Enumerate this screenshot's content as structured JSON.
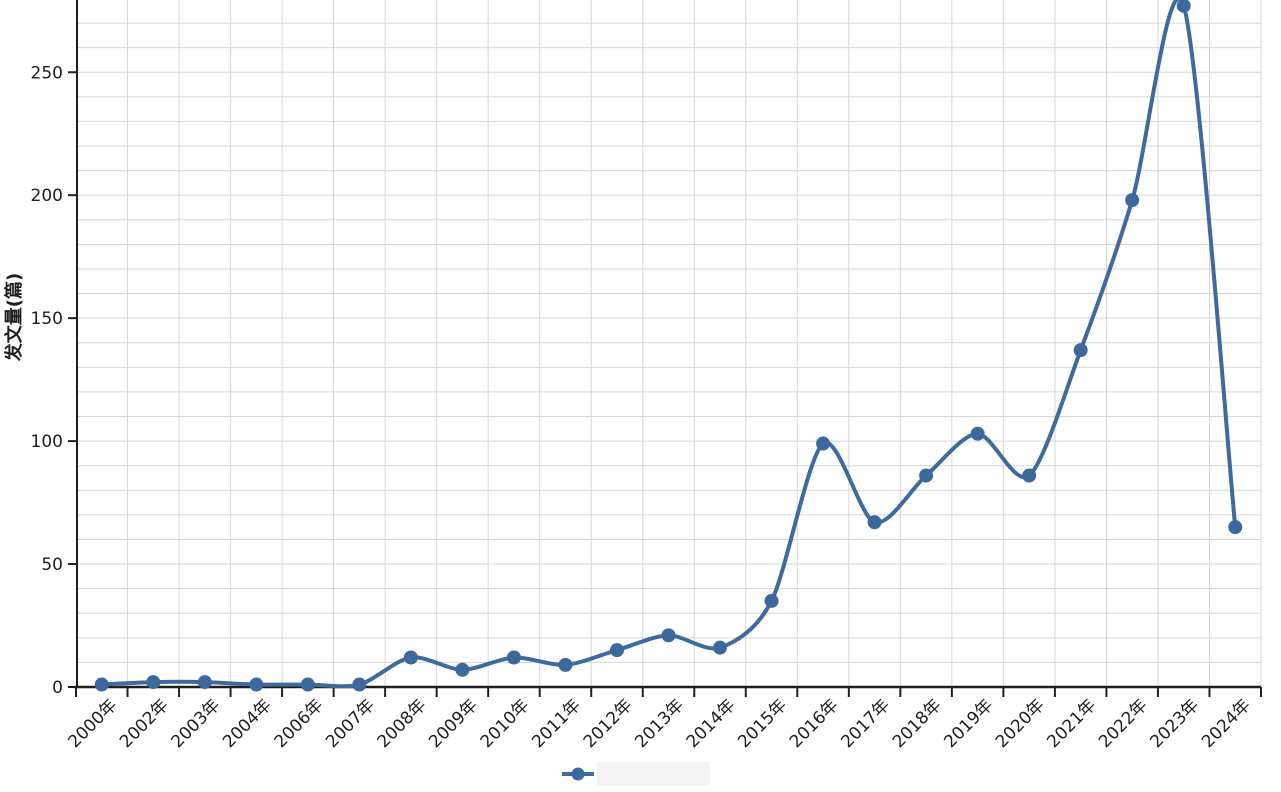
{
  "chart_data": {
    "type": "line",
    "title": "",
    "xlabel": "",
    "ylabel": "发文量(篇)",
    "categories": [
      "2000年",
      "2002年",
      "2003年",
      "2004年",
      "2006年",
      "2007年",
      "2008年",
      "2009年",
      "2010年",
      "2011年",
      "2012年",
      "2013年",
      "2014年",
      "2015年",
      "2016年",
      "2017年",
      "2018年",
      "2019年",
      "2020年",
      "2021年",
      "2022年",
      "2023年",
      "2024年"
    ],
    "values": [
      1,
      2,
      2,
      1,
      1,
      1,
      12,
      7,
      12,
      9,
      15,
      21,
      16,
      35,
      99,
      67,
      86,
      103,
      86,
      137,
      198,
      277,
      65
    ],
    "ylim": [
      0,
      280
    ],
    "yticks": [
      0,
      50,
      100,
      150,
      200,
      250
    ],
    "ytick_minor_interval": 10,
    "grid": true,
    "smooth": true,
    "legend_position": "bottom",
    "legend": {
      "marker": "line-dot-marker",
      "series_label": ""
    },
    "colors": {
      "line": "#3e6a9e",
      "point_fill": "#3c689c",
      "grid": "#d6d6d6",
      "axis": "#1f1f1f",
      "label": "#1f1f1f",
      "legend_redaction": "#f4f4f4"
    }
  }
}
